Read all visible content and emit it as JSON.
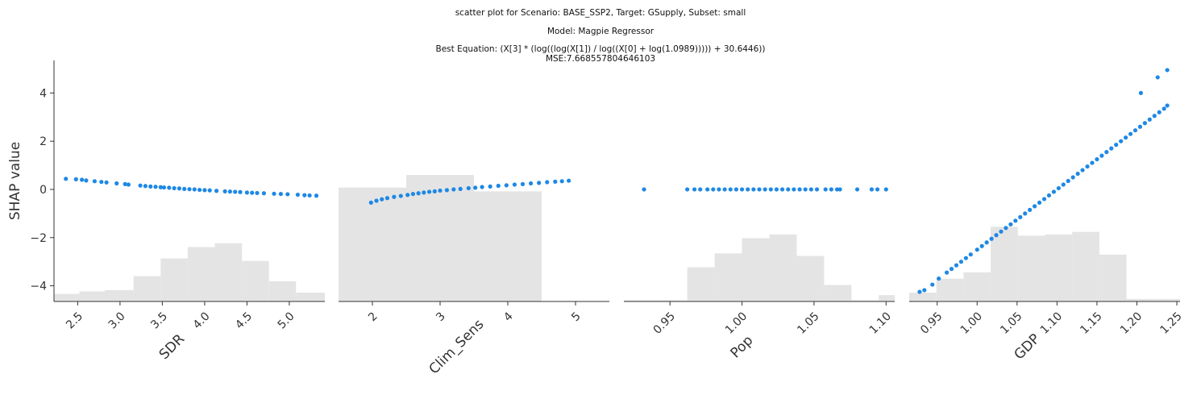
{
  "title": {
    "line1": "scatter plot for Scenario: BASE_SSP2, Target: GSupply, Subset: small",
    "line2": "Model: Magpie Regressor",
    "line3": "Best Equation: (X[3] * (log((log(X[1]) / log((X[0] + log(1.0989))))) + 30.6446))",
    "line4": "MSE:7.668557804646103"
  },
  "colors": {
    "point": "#1e88e5",
    "histogram": "#e4e4e4",
    "axis": "#333333"
  },
  "chart_data": [
    {
      "type": "scatter",
      "xlabel": "SDR",
      "ylabel": "SHAP value",
      "xlim": [
        2.22,
        5.42
      ],
      "ylim": [
        -4.65,
        5.35
      ],
      "xticks": [
        2.5,
        3.0,
        3.5,
        4.0,
        4.5,
        5.0
      ],
      "xtick_labels": [
        "2.5",
        "3.0",
        "3.5",
        "4.0",
        "4.5",
        "5.0"
      ],
      "yticks": [
        -4,
        -2,
        0,
        2,
        4
      ],
      "ytick_labels": [
        "−4",
        "−2",
        "0",
        "2",
        "4"
      ],
      "histogram": {
        "edges": [
          2.22,
          2.52,
          2.82,
          3.16,
          3.48,
          3.8,
          4.12,
          4.44,
          4.76,
          5.08,
          5.42
        ],
        "heights": [
          0.06,
          0.08,
          0.09,
          0.2,
          0.34,
          0.43,
          0.46,
          0.32,
          0.16,
          0.07
        ]
      },
      "points": [
        [
          2.36,
          0.44
        ],
        [
          2.48,
          0.42
        ],
        [
          2.55,
          0.4
        ],
        [
          2.6,
          0.37
        ],
        [
          2.7,
          0.34
        ],
        [
          2.78,
          0.31
        ],
        [
          2.84,
          0.29
        ],
        [
          2.96,
          0.25
        ],
        [
          3.06,
          0.22
        ],
        [
          3.1,
          0.2
        ],
        [
          3.24,
          0.16
        ],
        [
          3.3,
          0.14
        ],
        [
          3.36,
          0.12
        ],
        [
          3.42,
          0.11
        ],
        [
          3.48,
          0.09
        ],
        [
          3.52,
          0.08
        ],
        [
          3.58,
          0.07
        ],
        [
          3.64,
          0.05
        ],
        [
          3.7,
          0.04
        ],
        [
          3.76,
          0.02
        ],
        [
          3.82,
          0.01
        ],
        [
          3.88,
          0.0
        ],
        [
          3.94,
          -0.02
        ],
        [
          4.0,
          -0.03
        ],
        [
          4.06,
          -0.04
        ],
        [
          4.14,
          -0.06
        ],
        [
          4.24,
          -0.08
        ],
        [
          4.3,
          -0.09
        ],
        [
          4.36,
          -0.1
        ],
        [
          4.42,
          -0.11
        ],
        [
          4.5,
          -0.13
        ],
        [
          4.56,
          -0.14
        ],
        [
          4.62,
          -0.15
        ],
        [
          4.7,
          -0.16
        ],
        [
          4.82,
          -0.18
        ],
        [
          4.9,
          -0.19
        ],
        [
          4.98,
          -0.2
        ],
        [
          5.1,
          -0.22
        ],
        [
          5.18,
          -0.24
        ],
        [
          5.24,
          -0.25
        ],
        [
          5.32,
          -0.26
        ]
      ]
    },
    {
      "type": "scatter",
      "xlabel": "Clim_Sens",
      "xlim": [
        1.5,
        5.5
      ],
      "ylim": [
        -4.65,
        5.35
      ],
      "xticks": [
        2,
        3,
        4,
        5
      ],
      "xtick_labels": [
        "2",
        "3",
        "4",
        "5"
      ],
      "histogram": {
        "edges": [
          1.5,
          2.5,
          3.5,
          4.5,
          5.5
        ],
        "heights": [
          0.9,
          1.0,
          0.87,
          0.0
        ]
      },
      "points": [
        [
          1.98,
          -0.55
        ],
        [
          2.06,
          -0.47
        ],
        [
          2.14,
          -0.41
        ],
        [
          2.22,
          -0.36
        ],
        [
          2.32,
          -0.31
        ],
        [
          2.42,
          -0.27
        ],
        [
          2.52,
          -0.23
        ],
        [
          2.6,
          -0.19
        ],
        [
          2.68,
          -0.16
        ],
        [
          2.76,
          -0.13
        ],
        [
          2.84,
          -0.1
        ],
        [
          2.92,
          -0.08
        ],
        [
          3.0,
          -0.05
        ],
        [
          3.1,
          -0.03
        ],
        [
          3.2,
          0.0
        ],
        [
          3.3,
          0.02
        ],
        [
          3.42,
          0.05
        ],
        [
          3.52,
          0.07
        ],
        [
          3.62,
          0.1
        ],
        [
          3.74,
          0.12
        ],
        [
          3.86,
          0.15
        ],
        [
          3.98,
          0.17
        ],
        [
          4.1,
          0.2
        ],
        [
          4.22,
          0.22
        ],
        [
          4.34,
          0.25
        ],
        [
          4.46,
          0.27
        ],
        [
          4.58,
          0.3
        ],
        [
          4.7,
          0.32
        ],
        [
          4.8,
          0.34
        ],
        [
          4.9,
          0.36
        ]
      ]
    },
    {
      "type": "scatter",
      "xlabel": "Pop",
      "xlim": [
        0.918,
        1.106
      ],
      "ylim": [
        -4.65,
        5.35
      ],
      "xticks": [
        0.95,
        1.0,
        1.05,
        1.1
      ],
      "xtick_labels": [
        "0.95",
        "1.00",
        "1.05",
        "1.10"
      ],
      "histogram": {
        "edges": [
          0.918,
          0.957,
          0.962,
          0.981,
          1.0,
          1.019,
          1.038,
          1.057,
          1.076,
          1.095,
          1.106
        ],
        "heights": [
          0.01,
          0.01,
          0.27,
          0.38,
          0.5,
          0.53,
          0.36,
          0.13,
          0.01,
          0.05
        ]
      },
      "points": [
        [
          0.932,
          0.0
        ],
        [
          0.962,
          0.0
        ],
        [
          0.967,
          0.0
        ],
        [
          0.971,
          0.0
        ],
        [
          0.976,
          0.0
        ],
        [
          0.98,
          0.0
        ],
        [
          0.984,
          0.0
        ],
        [
          0.988,
          0.0
        ],
        [
          0.992,
          0.0
        ],
        [
          0.996,
          0.0
        ],
        [
          1.0,
          0.0
        ],
        [
          1.004,
          0.0
        ],
        [
          1.008,
          0.0
        ],
        [
          1.012,
          0.0
        ],
        [
          1.016,
          0.0
        ],
        [
          1.02,
          0.0
        ],
        [
          1.024,
          0.0
        ],
        [
          1.028,
          0.0
        ],
        [
          1.032,
          0.0
        ],
        [
          1.036,
          0.0
        ],
        [
          1.04,
          0.0
        ],
        [
          1.044,
          0.0
        ],
        [
          1.048,
          0.0
        ],
        [
          1.052,
          0.0
        ],
        [
          1.058,
          0.0
        ],
        [
          1.062,
          0.0
        ],
        [
          1.066,
          0.0
        ],
        [
          1.068,
          0.0
        ],
        [
          1.08,
          0.0
        ],
        [
          1.09,
          0.0
        ],
        [
          1.094,
          0.0
        ],
        [
          1.1,
          0.0
        ]
      ]
    },
    {
      "type": "scatter",
      "xlabel": "GDP",
      "xlim": [
        0.915,
        1.254
      ],
      "ylim": [
        -4.65,
        5.35
      ],
      "xticks": [
        0.95,
        1.0,
        1.05,
        1.1,
        1.15,
        1.2,
        1.25
      ],
      "xtick_labels": [
        "0.95",
        "1.00",
        "1.05",
        "1.10",
        "1.15",
        "1.20",
        "1.25"
      ],
      "histogram": {
        "edges": [
          0.915,
          0.949,
          0.983,
          1.017,
          1.051,
          1.085,
          1.119,
          1.153,
          1.187,
          1.221,
          1.254
        ],
        "heights": [
          0.07,
          0.18,
          0.23,
          0.59,
          0.52,
          0.53,
          0.55,
          0.37,
          0.02,
          0.02
        ]
      },
      "points": [
        [
          0.928,
          -4.25
        ],
        [
          0.934,
          -4.18
        ],
        [
          0.944,
          -3.95
        ],
        [
          0.952,
          -3.7
        ],
        [
          0.962,
          -3.45
        ],
        [
          0.968,
          -3.3
        ],
        [
          0.974,
          -3.15
        ],
        [
          0.98,
          -3.0
        ],
        [
          0.986,
          -2.85
        ],
        [
          0.992,
          -2.7
        ],
        [
          1.0,
          -2.5
        ],
        [
          1.006,
          -2.35
        ],
        [
          1.012,
          -2.2
        ],
        [
          1.018,
          -2.05
        ],
        [
          1.024,
          -1.9
        ],
        [
          1.03,
          -1.75
        ],
        [
          1.036,
          -1.6
        ],
        [
          1.042,
          -1.45
        ],
        [
          1.048,
          -1.3
        ],
        [
          1.054,
          -1.15
        ],
        [
          1.06,
          -1.0
        ],
        [
          1.066,
          -0.85
        ],
        [
          1.072,
          -0.7
        ],
        [
          1.078,
          -0.55
        ],
        [
          1.084,
          -0.4
        ],
        [
          1.09,
          -0.25
        ],
        [
          1.096,
          -0.1
        ],
        [
          1.102,
          0.05
        ],
        [
          1.108,
          0.2
        ],
        [
          1.114,
          0.35
        ],
        [
          1.12,
          0.5
        ],
        [
          1.126,
          0.65
        ],
        [
          1.132,
          0.8
        ],
        [
          1.138,
          0.95
        ],
        [
          1.144,
          1.1
        ],
        [
          1.15,
          1.25
        ],
        [
          1.156,
          1.4
        ],
        [
          1.162,
          1.55
        ],
        [
          1.168,
          1.7
        ],
        [
          1.174,
          1.85
        ],
        [
          1.18,
          2.0
        ],
        [
          1.186,
          2.15
        ],
        [
          1.192,
          2.3
        ],
        [
          1.198,
          2.45
        ],
        [
          1.204,
          2.6
        ],
        [
          1.21,
          2.75
        ],
        [
          1.216,
          2.9
        ],
        [
          1.222,
          3.05
        ],
        [
          1.228,
          3.2
        ],
        [
          1.234,
          3.35
        ],
        [
          1.238,
          3.48
        ],
        [
          1.205,
          4.0
        ],
        [
          1.226,
          4.65
        ],
        [
          1.238,
          4.95
        ]
      ]
    }
  ]
}
